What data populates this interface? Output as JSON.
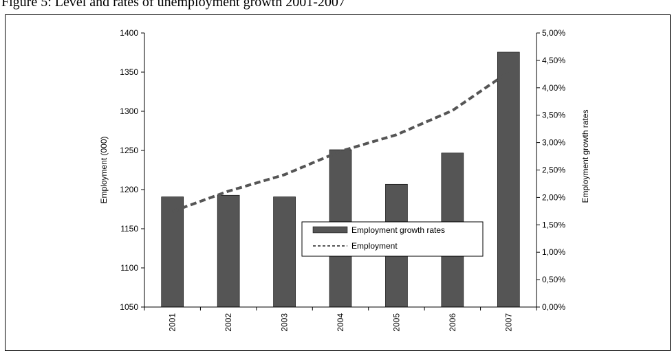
{
  "caption": "Figure 5: Level and rates of unemployment growth 2001-2007",
  "chart_data": {
    "type": "bar+line",
    "categories": [
      "2001",
      "2002",
      "2003",
      "2004",
      "2005",
      "2006",
      "2007"
    ],
    "series": [
      {
        "name": "Employment growth rates",
        "type": "bar",
        "axis": "right",
        "values": [
          2.01,
          2.04,
          2.01,
          2.87,
          2.24,
          2.81,
          4.65
        ],
        "color": "#555555"
      },
      {
        "name": "Employment",
        "type": "line",
        "axis": "left",
        "style": "dashed",
        "values": [
          1172,
          1198,
          1219,
          1249,
          1270,
          1301,
          1350
        ],
        "color": "#555555"
      }
    ],
    "ylabel_left": "Employment (000)",
    "ylabel_right": "Employment growth rates",
    "ylim_left": [
      1050,
      1400
    ],
    "ylim_right": [
      0,
      5
    ],
    "yticks_left": [
      "1050",
      "1100",
      "1150",
      "1200",
      "1250",
      "1300",
      "1350",
      "1400"
    ],
    "yticks_right": [
      "0,00%",
      "0,50%",
      "1,00%",
      "1,50%",
      "2,00%",
      "2,50%",
      "3,00%",
      "3,50%",
      "4,00%",
      "4,50%",
      "5,00%"
    ],
    "legend": [
      "Employment growth rates",
      "Employment"
    ],
    "grid": false
  }
}
